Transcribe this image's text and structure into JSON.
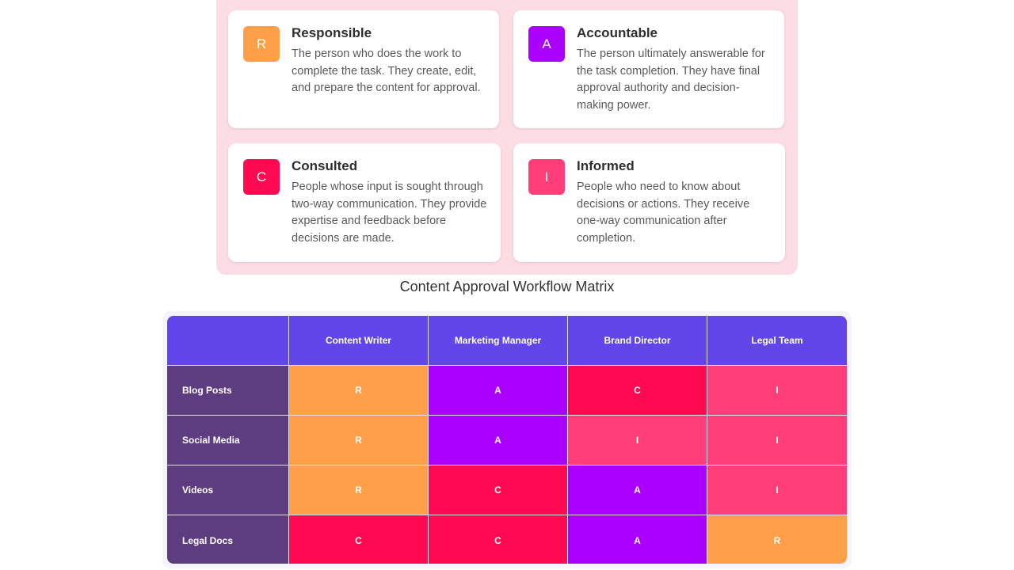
{
  "colors": {
    "R": "#ff9f4a",
    "A": "#aa00ff",
    "C": "#ff0a50",
    "I": "#ff3d78",
    "header": "#6246ea",
    "row_header": "#5d3d80",
    "legend_bg": "#fcdde4"
  },
  "legend": {
    "responsible": {
      "letter": "R",
      "title": "Responsible",
      "description": "The person who does the work to complete the task. They create, edit, and prepare the content for approval."
    },
    "accountable": {
      "letter": "A",
      "title": "Accountable",
      "description": "The person ultimately answerable for the task completion. They have final approval authority and decision-making power."
    },
    "consulted": {
      "letter": "C",
      "title": "Consulted",
      "description": "People whose input is sought through two-way communication. They provide expertise and feedback before decisions are made."
    },
    "informed": {
      "letter": "I",
      "title": "Informed",
      "description": "People who need to know about decisions or actions. They receive one-way communication after completion."
    }
  },
  "matrix": {
    "title": "Content Approval Workflow Matrix",
    "corner": "",
    "columns": [
      "Content Writer",
      "Marketing Manager",
      "Brand Director",
      "Legal Team"
    ],
    "rows": [
      {
        "label": "Blog Posts",
        "values": [
          "R",
          "A",
          "C",
          "I"
        ]
      },
      {
        "label": "Social Media",
        "values": [
          "R",
          "A",
          "I",
          "I"
        ]
      },
      {
        "label": "Videos",
        "values": [
          "R",
          "C",
          "A",
          "I"
        ]
      },
      {
        "label": "Legal Docs",
        "values": [
          "C",
          "C",
          "A",
          "R"
        ]
      }
    ]
  }
}
